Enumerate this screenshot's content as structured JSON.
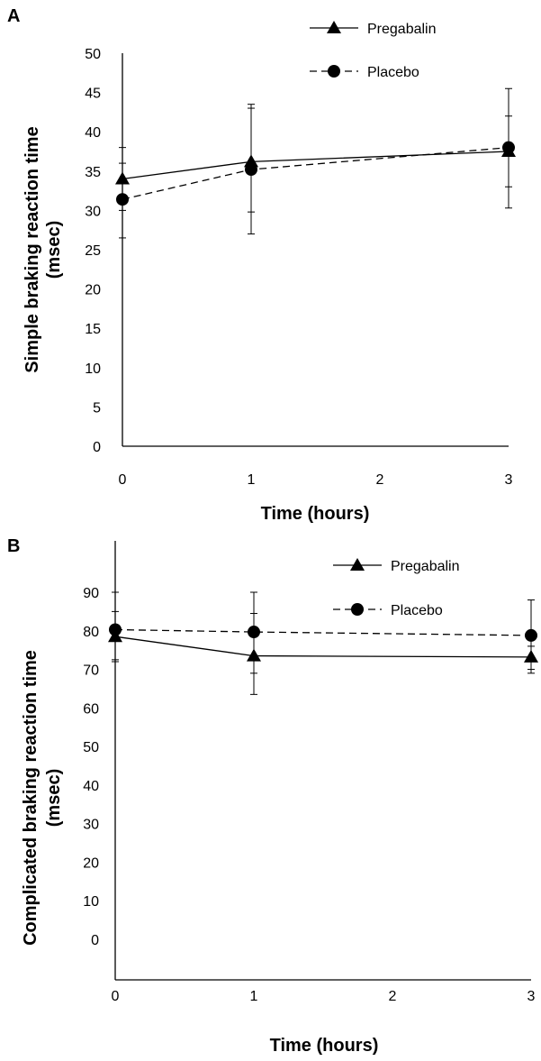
{
  "colors": {
    "line": "#000000",
    "background": "#ffffff"
  },
  "chart_data": [
    {
      "type": "line",
      "panel_label": "A",
      "xlabel": "Time (hours)",
      "ylabel_line1": "Simple braking reaction time",
      "ylabel_line2": "(msec)",
      "x": [
        0,
        1,
        3
      ],
      "xticks": [
        0,
        1,
        2,
        3
      ],
      "xlim": [
        0,
        3
      ],
      "yticks": [
        0,
        5,
        10,
        15,
        20,
        25,
        30,
        35,
        40,
        45,
        50
      ],
      "ylim": [
        0,
        50
      ],
      "grid": false,
      "legend_position": "top-right",
      "series": [
        {
          "name": "Pregabalin",
          "line_style": "solid",
          "marker": "triangle",
          "values": [
            34.0,
            36.2,
            37.5
          ],
          "err_upper": [
            38.0,
            43.5,
            45.5
          ],
          "err_lower": [
            30.0,
            29.8,
            33.0
          ]
        },
        {
          "name": "Placebo",
          "line_style": "dashed",
          "marker": "circle",
          "values": [
            31.4,
            35.2,
            38.0
          ],
          "err_upper": [
            36.0,
            43.0,
            42.0
          ],
          "err_lower": [
            26.5,
            27.0,
            30.3
          ]
        }
      ]
    },
    {
      "type": "line",
      "panel_label": "B",
      "xlabel": "Time (hours)",
      "ylabel_line1": "Complicated braking reaction time",
      "ylabel_line2": "(msec)",
      "x": [
        0,
        1,
        3
      ],
      "xticks": [
        0,
        1,
        2,
        3
      ],
      "xlim": [
        0,
        3
      ],
      "yticks": [
        0,
        10,
        20,
        30,
        40,
        50,
        60,
        70,
        80,
        90
      ],
      "ylim": [
        -5,
        90
      ],
      "grid": false,
      "legend_position": "top-right",
      "series": [
        {
          "name": "Pregabalin",
          "line_style": "solid",
          "marker": "triangle",
          "values": [
            78.5,
            73.5,
            73.2
          ],
          "err_upper": [
            85.0,
            84.5,
            76.0
          ],
          "err_lower": [
            72.0,
            63.5,
            70.0
          ]
        },
        {
          "name": "Placebo",
          "line_style": "dashed",
          "marker": "circle",
          "values": [
            80.3,
            79.7,
            78.8
          ],
          "err_upper": [
            90.0,
            90.0,
            88.0
          ],
          "err_lower": [
            72.5,
            69.0,
            69.0
          ]
        }
      ]
    }
  ]
}
